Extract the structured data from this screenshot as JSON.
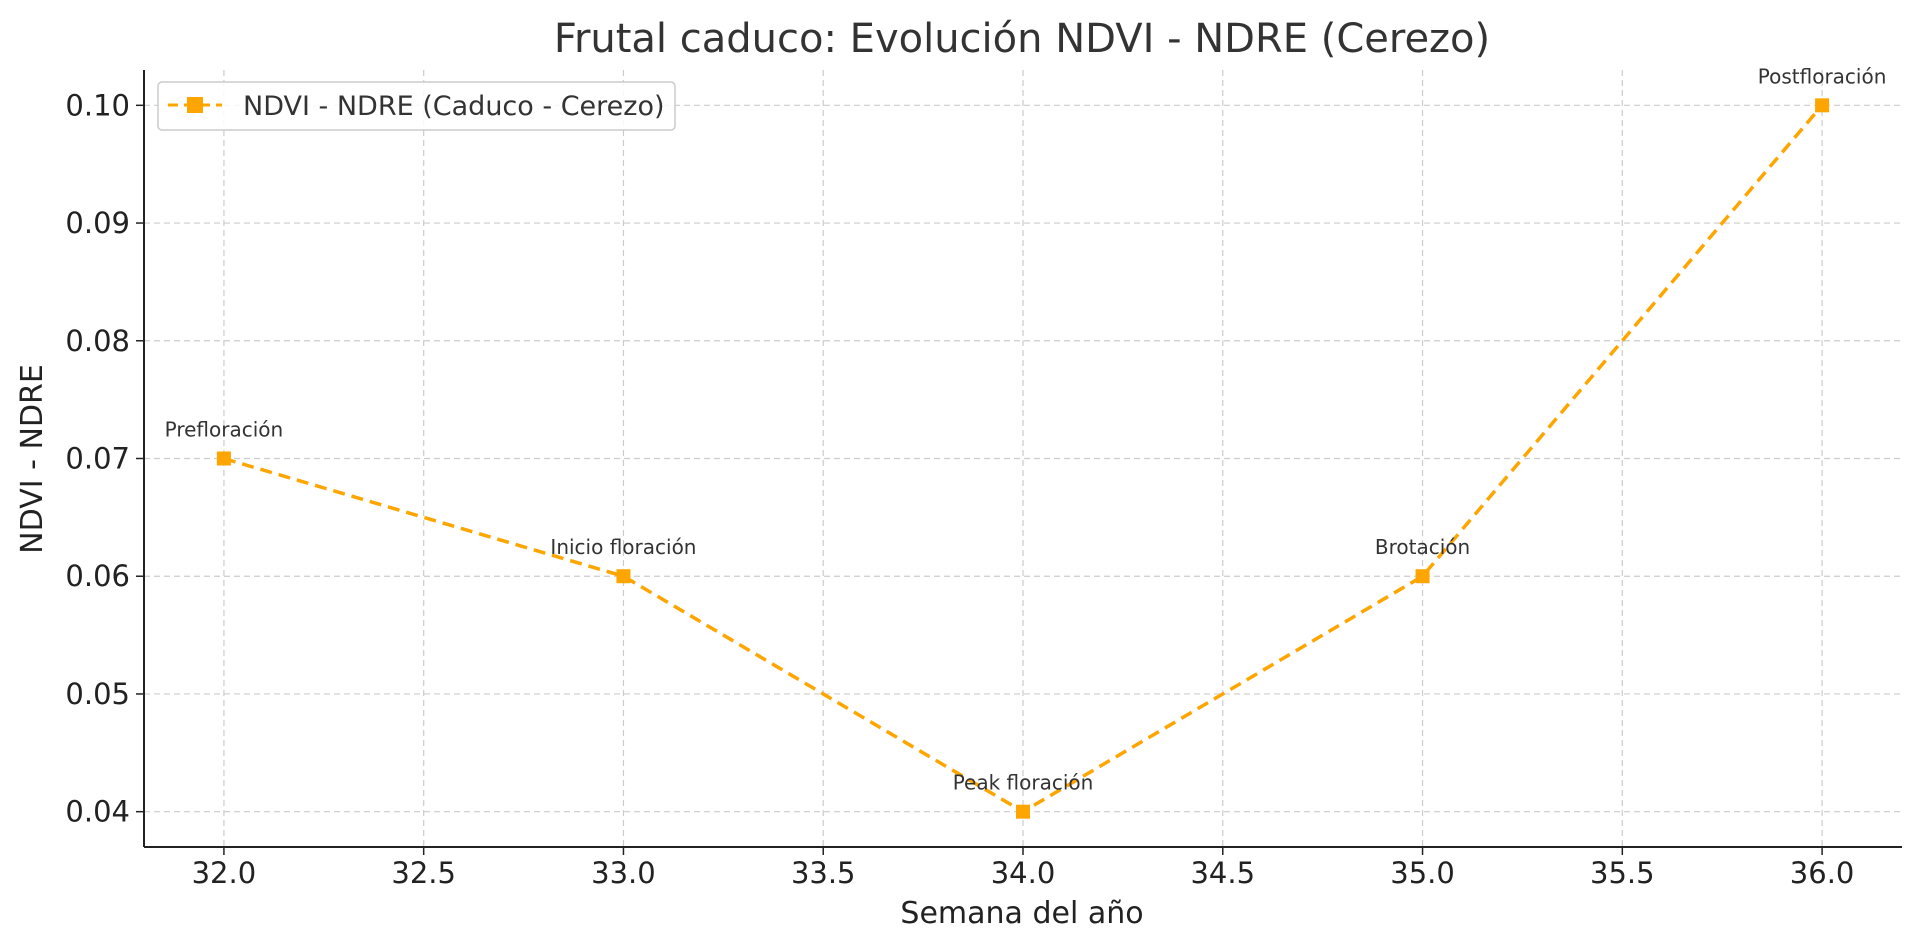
{
  "chart_data": {
    "type": "line",
    "title": "Frutal caduco: Evolución NDVI - NDRE (Cerezo)",
    "xlabel": "Semana del año",
    "ylabel": "NDVI - NDRE",
    "xlim": [
      31.8,
      36.2
    ],
    "ylim": [
      0.037,
      0.103
    ],
    "x_ticks": [
      "32.0",
      "32.5",
      "33.0",
      "33.5",
      "34.0",
      "34.5",
      "35.0",
      "35.5",
      "36.0"
    ],
    "y_ticks": [
      "0.04",
      "0.05",
      "0.06",
      "0.07",
      "0.08",
      "0.09",
      "0.10"
    ],
    "grid": true,
    "legend_position": "top-left",
    "series": [
      {
        "name": "NDVI - NDRE (Caduco - Cerezo)",
        "color": "#FFA500",
        "line_style": "dashed",
        "marker": "square",
        "x": [
          32,
          33,
          34,
          35,
          36
        ],
        "y": [
          0.07,
          0.06,
          0.04,
          0.06,
          0.1
        ]
      }
    ],
    "annotations": [
      {
        "x": 32,
        "y": 0.07,
        "text": "Prefloración"
      },
      {
        "x": 33,
        "y": 0.06,
        "text": "Inicio floración"
      },
      {
        "x": 34,
        "y": 0.04,
        "text": "Peak floración"
      },
      {
        "x": 35,
        "y": 0.06,
        "text": "Brotación"
      },
      {
        "x": 36,
        "y": 0.1,
        "text": "Postfloración"
      }
    ]
  }
}
